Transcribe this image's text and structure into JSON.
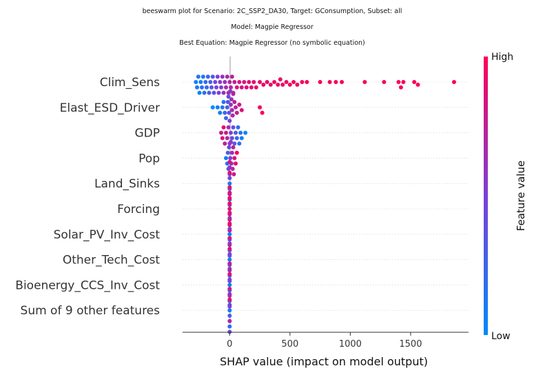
{
  "chart_data": {
    "type": "scatter",
    "subtype": "beeswarm",
    "title_lines": [
      "beeswarm plot for Scenario: 2C_SSP2_DA30, Target: GConsumption, Subset: all",
      "Model: Magpie Regressor",
      "Best Equation: Magpie Regressor (no symbolic equation)"
    ],
    "xlabel": "SHAP value (impact on model output)",
    "xlim": [
      -390,
      1980
    ],
    "xticks": [
      0,
      500,
      1000,
      1500
    ],
    "features": [
      "Clim_Sens",
      "Elast_ESD_Driver",
      "GDP",
      "Pop",
      "Land_Sinks",
      "Forcing",
      "Solar_PV_Inv_Cost",
      "Other_Tech_Cost",
      "Bioenergy_CCS_Inv_Cost",
      "Sum of 9 other features"
    ],
    "colorbar": {
      "high_label": "High",
      "low_label": "Low",
      "title": "Feature value"
    },
    "colors": {
      "low": "#008afb",
      "mid": "#7c3fd8",
      "high": "#ff0052"
    },
    "series": [
      {
        "feature": "Clim_Sens",
        "points": [
          [
            -280,
            0.05
          ],
          [
            -270,
            0.1
          ],
          [
            -260,
            0.15
          ],
          [
            -250,
            0.05
          ],
          [
            -240,
            0.1
          ],
          [
            -230,
            0.2
          ],
          [
            -220,
            0.1
          ],
          [
            -210,
            0.15
          ],
          [
            -200,
            0.2
          ],
          [
            -190,
            0.2
          ],
          [
            -180,
            0.25
          ],
          [
            -170,
            0.3
          ],
          [
            -160,
            0.3
          ],
          [
            -150,
            0.35
          ],
          [
            -140,
            0.35
          ],
          [
            -130,
            0.4
          ],
          [
            -120,
            0.45
          ],
          [
            -110,
            0.45
          ],
          [
            -100,
            0.5
          ],
          [
            -90,
            0.5
          ],
          [
            -80,
            0.55
          ],
          [
            -70,
            0.55
          ],
          [
            -60,
            0.6
          ],
          [
            -50,
            0.6
          ],
          [
            -40,
            0.62
          ],
          [
            -30,
            0.65
          ],
          [
            -20,
            0.65
          ],
          [
            -10,
            0.68
          ],
          [
            0,
            0.7
          ],
          [
            10,
            0.72
          ],
          [
            20,
            0.75
          ],
          [
            30,
            0.75
          ],
          [
            40,
            0.78
          ],
          [
            60,
            0.8
          ],
          [
            80,
            0.82
          ],
          [
            100,
            0.83
          ],
          [
            120,
            0.85
          ],
          [
            140,
            0.86
          ],
          [
            160,
            0.87
          ],
          [
            180,
            0.88
          ],
          [
            200,
            0.89
          ],
          [
            220,
            0.9
          ],
          [
            250,
            0.9
          ],
          [
            280,
            0.91
          ],
          [
            310,
            0.91
          ],
          [
            340,
            0.92
          ],
          [
            370,
            0.92
          ],
          [
            400,
            0.93
          ],
          [
            420,
            0.93
          ],
          [
            440,
            0.94
          ],
          [
            470,
            0.94
          ],
          [
            500,
            0.95
          ],
          [
            530,
            0.95
          ],
          [
            560,
            0.95
          ],
          [
            600,
            0.96
          ],
          [
            640,
            0.96
          ],
          [
            750,
            0.97
          ],
          [
            830,
            0.97
          ],
          [
            880,
            0.97
          ],
          [
            930,
            0.98
          ],
          [
            1120,
            0.98
          ],
          [
            1280,
            0.98
          ],
          [
            1400,
            0.99
          ],
          [
            1420,
            0.99
          ],
          [
            1440,
            0.99
          ],
          [
            1530,
            0.99
          ],
          [
            1560,
            1.0
          ],
          [
            1860,
            1.0
          ]
        ]
      },
      {
        "feature": "Elast_ESD_Driver",
        "points": [
          [
            -140,
            0.0
          ],
          [
            -100,
            0.05
          ],
          [
            -80,
            0.1
          ],
          [
            -60,
            0.15
          ],
          [
            -50,
            0.15
          ],
          [
            -40,
            0.2
          ],
          [
            -30,
            0.25
          ],
          [
            -20,
            0.3
          ],
          [
            -15,
            0.35
          ],
          [
            -10,
            0.4
          ],
          [
            -5,
            0.45
          ],
          [
            0,
            0.5
          ],
          [
            5,
            0.55
          ],
          [
            10,
            0.6
          ],
          [
            15,
            0.62
          ],
          [
            20,
            0.65
          ],
          [
            25,
            0.68
          ],
          [
            30,
            0.7
          ],
          [
            40,
            0.72
          ],
          [
            50,
            0.75
          ],
          [
            60,
            0.78
          ],
          [
            80,
            0.8
          ],
          [
            100,
            0.85
          ],
          [
            250,
            0.95
          ],
          [
            270,
            1.0
          ]
        ]
      },
      {
        "feature": "GDP",
        "points": [
          [
            -70,
            0.8
          ],
          [
            -60,
            0.85
          ],
          [
            -50,
            0.9
          ],
          [
            -40,
            0.75
          ],
          [
            -30,
            0.8
          ],
          [
            -20,
            0.7
          ],
          [
            -10,
            0.65
          ],
          [
            0,
            0.55
          ],
          [
            10,
            0.5
          ],
          [
            20,
            0.45
          ],
          [
            30,
            0.4
          ],
          [
            40,
            0.35
          ],
          [
            50,
            0.3
          ],
          [
            60,
            0.25
          ],
          [
            70,
            0.2
          ],
          [
            80,
            0.15
          ],
          [
            90,
            0.15
          ],
          [
            100,
            0.1
          ],
          [
            130,
            0.05
          ]
        ]
      },
      {
        "feature": "Pop",
        "points": [
          [
            -30,
            0.1
          ],
          [
            -20,
            0.2
          ],
          [
            -15,
            0.3
          ],
          [
            -10,
            0.35
          ],
          [
            -5,
            0.4
          ],
          [
            0,
            0.45
          ],
          [
            5,
            0.5
          ],
          [
            10,
            0.55
          ],
          [
            15,
            0.6
          ],
          [
            20,
            0.65
          ],
          [
            25,
            0.7
          ],
          [
            30,
            0.75
          ],
          [
            35,
            0.8
          ],
          [
            40,
            0.85
          ],
          [
            50,
            0.9
          ],
          [
            60,
            0.95
          ]
        ]
      },
      {
        "feature": "Land_Sinks",
        "points": [
          [
            0,
            0.1
          ],
          [
            0,
            0.3
          ],
          [
            0,
            0.5
          ],
          [
            0,
            0.7
          ],
          [
            0,
            0.9
          ],
          [
            0,
            0.2
          ],
          [
            0,
            0.6
          ],
          [
            0,
            0.4
          ],
          [
            0,
            0.8
          ]
        ]
      },
      {
        "feature": "Forcing",
        "points": [
          [
            0,
            0.9
          ],
          [
            0,
            0.95
          ],
          [
            0,
            1.0
          ],
          [
            0,
            0.85
          ],
          [
            0,
            0.92
          ],
          [
            0,
            0.98
          ],
          [
            0,
            0.88
          ],
          [
            0,
            0.95
          ],
          [
            0,
            0.9
          ]
        ]
      },
      {
        "feature": "Solar_PV_Inv_Cost",
        "points": [
          [
            0,
            0.1
          ],
          [
            0,
            0.3
          ],
          [
            0,
            0.5
          ],
          [
            0,
            0.7
          ],
          [
            0,
            0.9
          ],
          [
            0,
            0.2
          ],
          [
            0,
            0.6
          ],
          [
            0,
            0.4
          ],
          [
            0,
            0.8
          ]
        ]
      },
      {
        "feature": "Other_Tech_Cost",
        "points": [
          [
            0,
            0.1
          ],
          [
            0,
            0.3
          ],
          [
            0,
            0.5
          ],
          [
            0,
            0.7
          ],
          [
            0,
            0.9
          ],
          [
            0,
            0.2
          ],
          [
            0,
            0.6
          ],
          [
            0,
            0.4
          ],
          [
            0,
            0.8
          ]
        ]
      },
      {
        "feature": "Bioenergy_CCS_Inv_Cost",
        "points": [
          [
            0,
            0.1
          ],
          [
            0,
            0.3
          ],
          [
            0,
            0.5
          ],
          [
            0,
            0.7
          ],
          [
            0,
            0.9
          ],
          [
            0,
            0.2
          ],
          [
            0,
            0.6
          ],
          [
            0,
            0.4
          ],
          [
            0,
            0.8
          ]
        ]
      },
      {
        "feature": "Sum of 9 other features",
        "points": [
          [
            0,
            0.1
          ],
          [
            0,
            0.3
          ],
          [
            0,
            0.5
          ],
          [
            0,
            0.7
          ],
          [
            0,
            0.9
          ],
          [
            0,
            0.2
          ],
          [
            0,
            0.6
          ],
          [
            0,
            0.4
          ],
          [
            0,
            0.8
          ]
        ]
      }
    ]
  }
}
